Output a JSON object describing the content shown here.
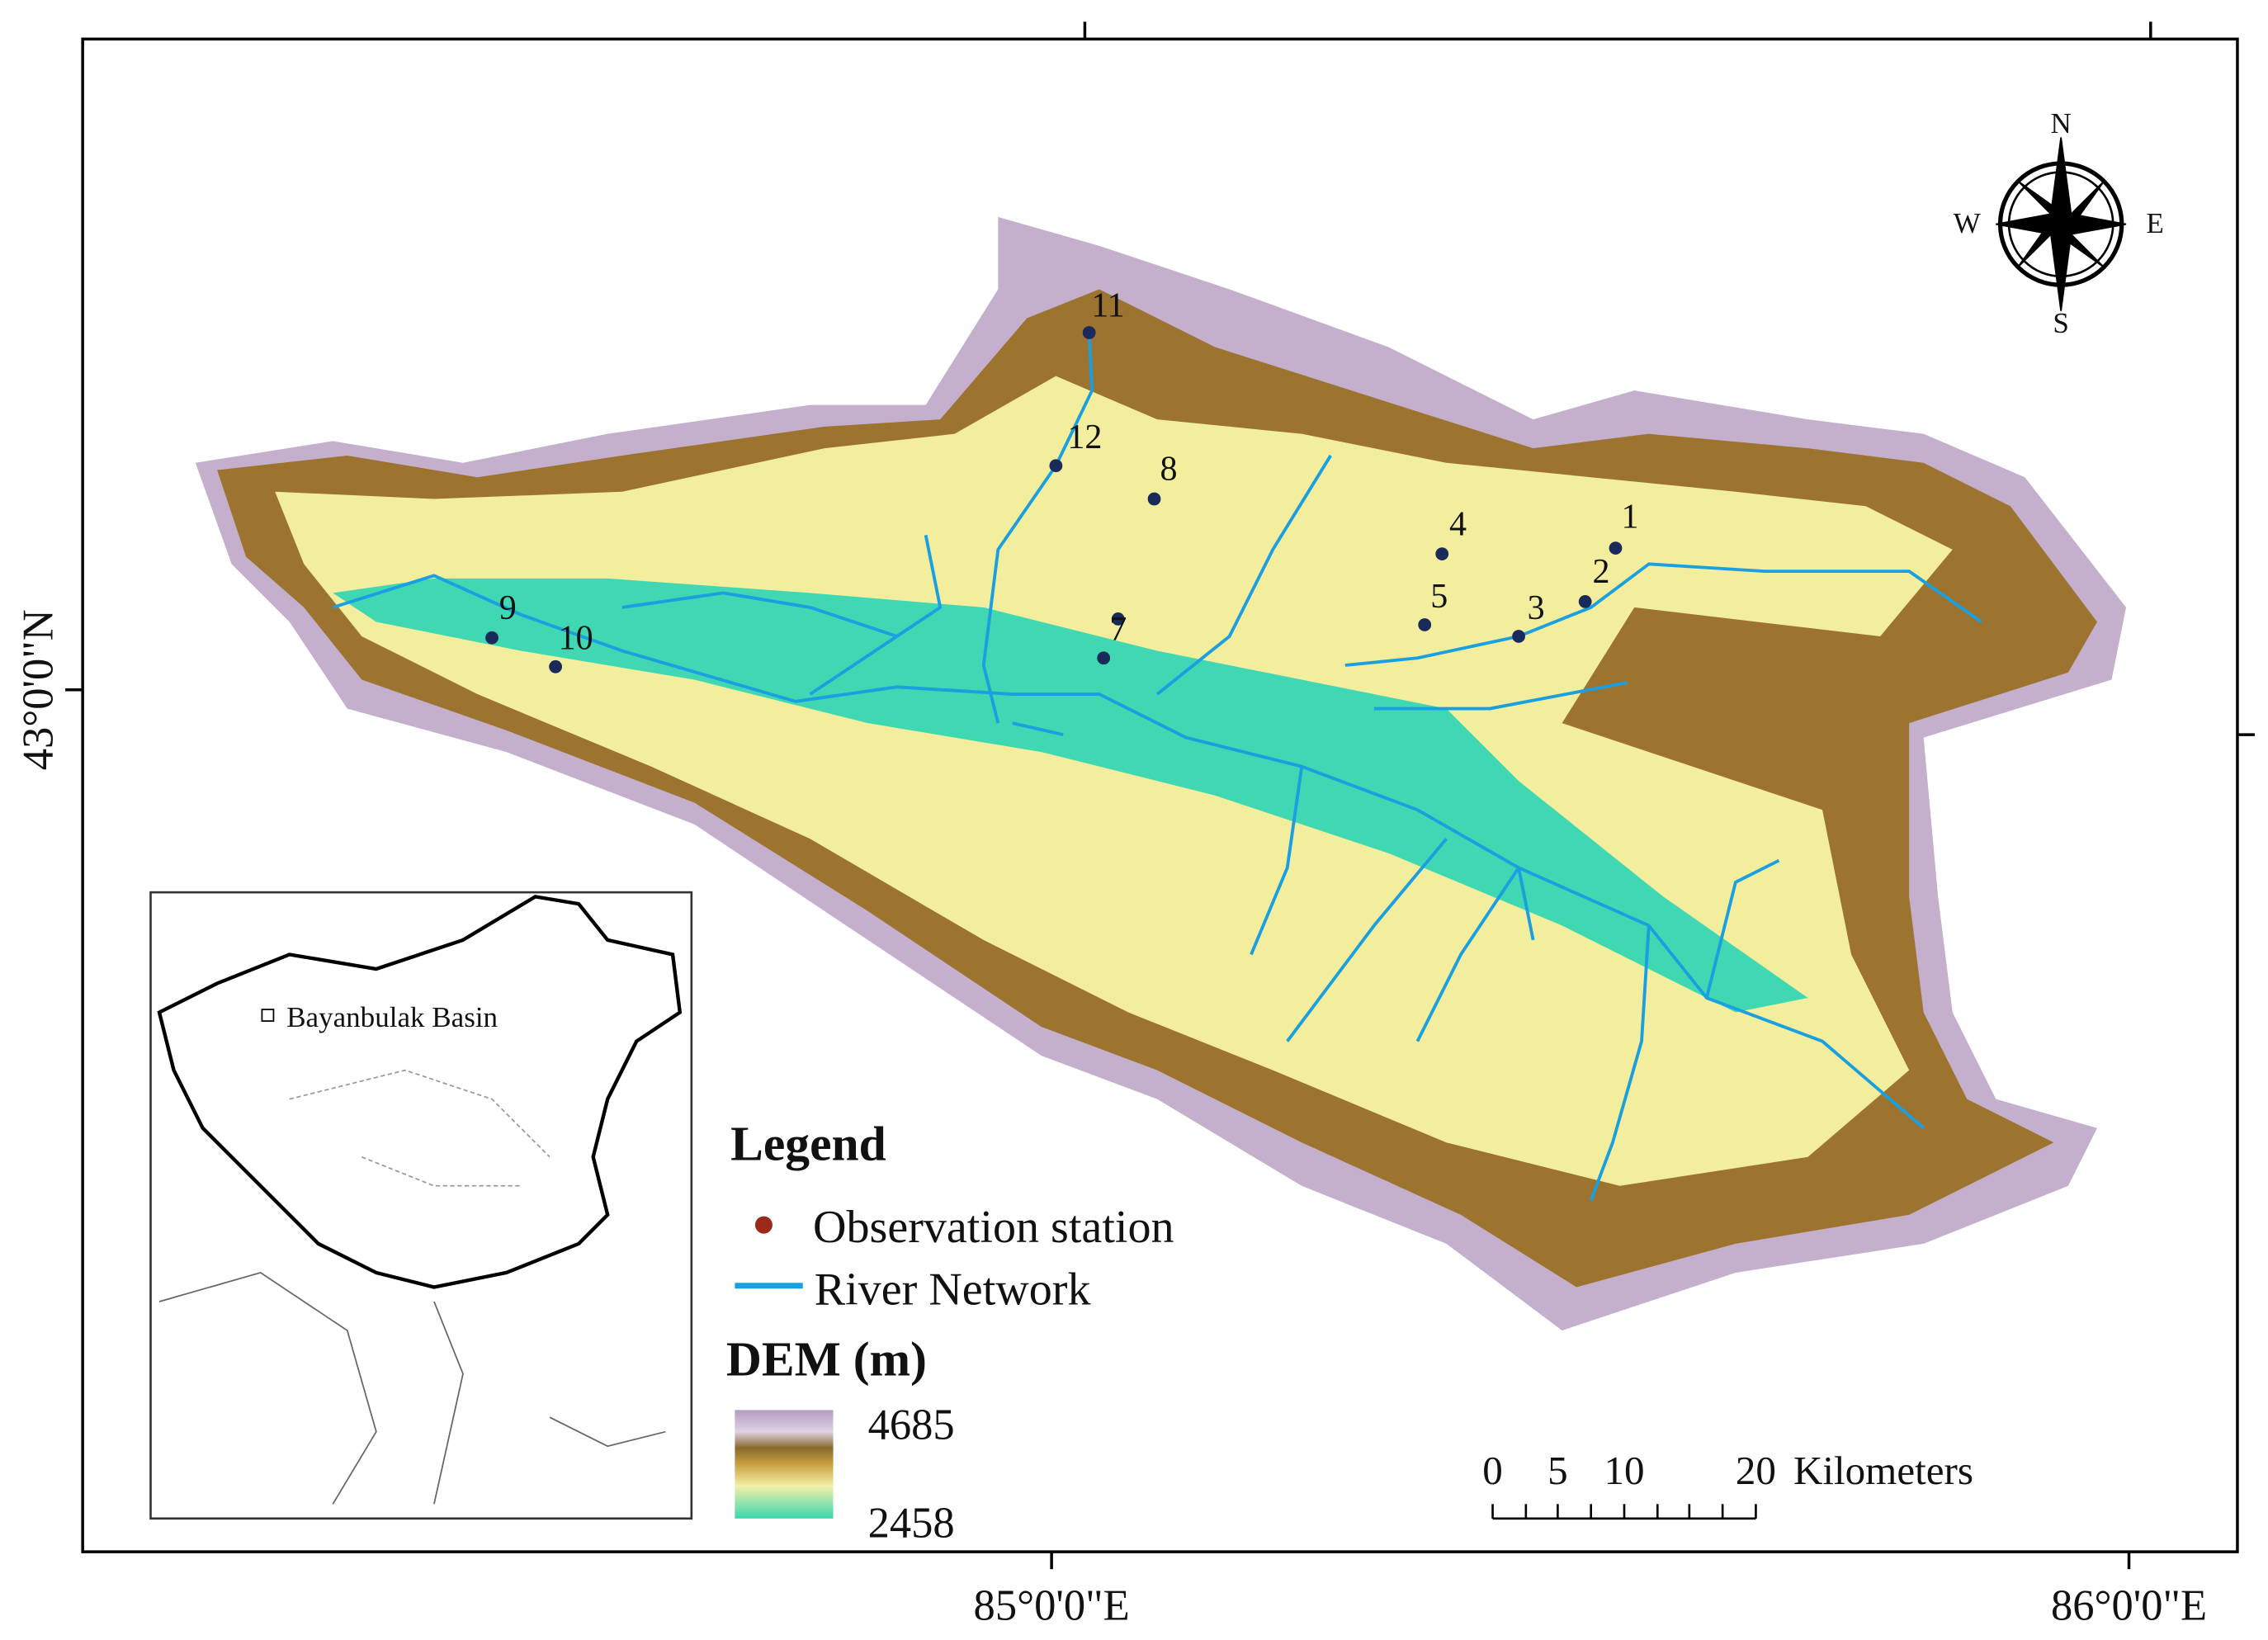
{
  "map": {
    "lat_label": "43°0'0\"N",
    "lon_labels": [
      "85°0'0\"E",
      "86°0'0\"E"
    ],
    "compass": {
      "n": "N",
      "s": "S",
      "w": "W",
      "e": "E"
    },
    "stations": [
      "1",
      "2",
      "3",
      "4",
      "5",
      "7",
      "8",
      "9",
      "10",
      "11",
      "12"
    ],
    "inset_label": "Bayanbulak Basin",
    "legend": {
      "title": "Legend",
      "station": "Observation station",
      "river": "River Network",
      "dem_title": "DEM (m)",
      "dem_max": "4685",
      "dem_min": "2458"
    },
    "scale_bar": {
      "ticks": [
        "0",
        "5",
        "10",
        "20"
      ],
      "unit": "Kilometers"
    }
  }
}
